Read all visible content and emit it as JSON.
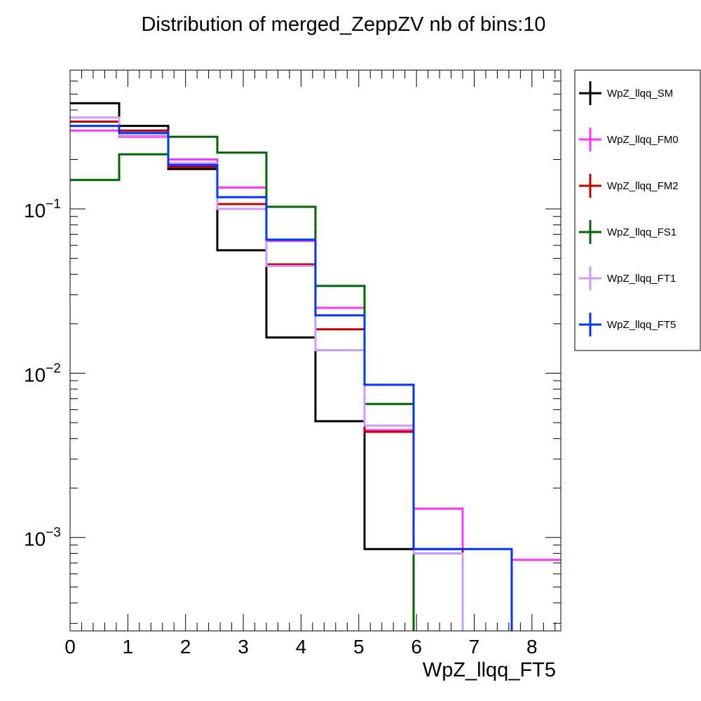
{
  "chart_data": {
    "type": "line",
    "title": "Distribution of merged_ZeppZV nb of bins:10",
    "xlabel": "WpZ_llqq_FT5",
    "ylabel": "",
    "xlim": [
      0,
      8.5
    ],
    "ylim": [
      0.00027,
      0.7
    ],
    "log_y": true,
    "grid": false,
    "legend_position": "right",
    "bin_edges": [
      0,
      0.85,
      1.7,
      2.55,
      3.4,
      4.25,
      5.1,
      5.95,
      6.8,
      7.65,
      8.5
    ],
    "x_tick_labels": [
      "0",
      "1",
      "2",
      "3",
      "4",
      "5",
      "6",
      "7",
      "8"
    ],
    "y_tick_labels": [
      {
        "value": 0.1,
        "base": "10",
        "exp": "−1"
      },
      {
        "value": 0.01,
        "base": "10",
        "exp": "−2"
      },
      {
        "value": 0.001,
        "base": "10",
        "exp": "−3"
      }
    ],
    "series": [
      {
        "name": "WpZ_llqq_SM",
        "color": "#000000",
        "values": [
          0.44,
          0.32,
          0.175,
          0.056,
          0.0165,
          0.0051,
          0.00085,
          0.0,
          0.0,
          0.0
        ]
      },
      {
        "name": "WpZ_llqq_FM0",
        "color": "#ff33ff",
        "values": [
          0.3,
          0.275,
          0.2,
          0.135,
          0.064,
          0.025,
          0.0045,
          0.0015,
          0.0,
          0.00073
        ]
      },
      {
        "name": "WpZ_llqq_FM2",
        "color": "#c00000",
        "values": [
          0.34,
          0.3,
          0.18,
          0.107,
          0.046,
          0.0185,
          0.0044,
          0.00085,
          0.0,
          0.0
        ]
      },
      {
        "name": "WpZ_llqq_FS1",
        "color": "#006400",
        "values": [
          0.15,
          0.215,
          0.275,
          0.22,
          0.103,
          0.034,
          0.0065,
          0.0,
          0.0,
          0.0
        ]
      },
      {
        "name": "WpZ_llqq_FT1",
        "color": "#cc99ff",
        "values": [
          0.36,
          0.28,
          0.19,
          0.1,
          0.045,
          0.0138,
          0.0048,
          0.0008,
          0.0,
          0.0
        ]
      },
      {
        "name": "WpZ_llqq_FT5",
        "color": "#0033ff",
        "values": [
          0.32,
          0.29,
          0.185,
          0.118,
          0.065,
          0.0225,
          0.0085,
          0.00085,
          0.00085,
          0.0
        ]
      }
    ]
  }
}
